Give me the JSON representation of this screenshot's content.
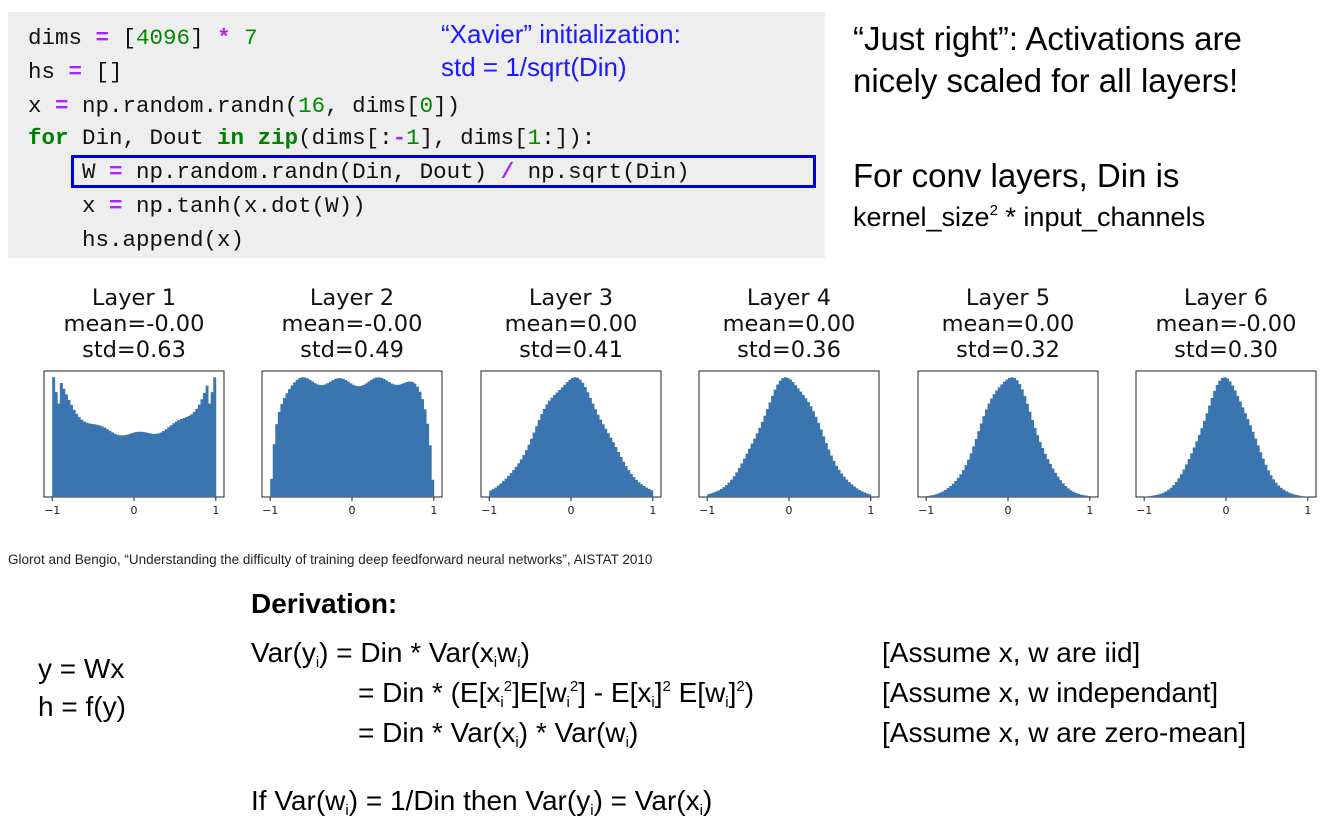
{
  "code": {
    "line1": {
      "a": "dims ",
      "op": "=",
      "b": " [",
      "n1": "4096",
      "c": "] ",
      "op2": "*",
      "d": " ",
      "n2": "7"
    },
    "line2": {
      "a": "hs ",
      "op": "=",
      "b": " []"
    },
    "line3": {
      "a": "x ",
      "op": "=",
      "b": " np.random.randn(",
      "n1": "16",
      "c": ", dims[",
      "n2": "0",
      "d": "])"
    },
    "line4": {
      "kw": "for",
      "a": " Din, Dout ",
      "kw2": "in",
      "b": " ",
      "kw3": "zip",
      "c": "(dims[:",
      "op": "-",
      "n1": "1",
      "d": "], dims[",
      "n2": "1",
      "e": ":]):"
    },
    "line5": {
      "a": "    W ",
      "op": "=",
      "b": " np.random.randn(Din, Dout) ",
      "op2": "/",
      "c": " np.sqrt(Din)"
    },
    "line6": {
      "a": "    x ",
      "op": "=",
      "b": " np.tanh(x.dot(W))"
    },
    "line7": {
      "a": "    hs.append(x)"
    }
  },
  "xavier_note": {
    "line1": "“Xavier” initialization:",
    "line2": "std = 1/sqrt(Din)"
  },
  "side_note": {
    "line1": "“Just right”: Activations are",
    "line2": "nicely scaled for all layers!",
    "line3": "For conv layers, Din is",
    "line4a": "kernel_size",
    "line4sup": "2",
    "line4b": " * input_channels"
  },
  "citation": "Glorot and Bengio, “Understanding the difficulty of training deep feedforward neural networks”, AISTAT 2010",
  "equations_left": {
    "line1": "y = Wx",
    "line2": "h = f(y)"
  },
  "derivation": {
    "title": "Derivation:",
    "r1": {
      "a": "Var(y",
      "s1": "i",
      "b": ") = Din * Var(x",
      "s2": "i",
      "c": "w",
      "s3": "i",
      "d": ")"
    },
    "r2": {
      "a": "= Din * (E[x",
      "s1": "i",
      "p1": "2",
      "b": "]E[w",
      "s2": "i",
      "p2": "2",
      "c": "] - E[x",
      "s3": "i",
      "d": "]",
      "p3": "2",
      "e": " E[w",
      "s4": "i",
      "f": "]",
      "p4": "2",
      "g": ")"
    },
    "r3": {
      "a": "= Din * Var(x",
      "s1": "i",
      "b": ") * Var(w",
      "s2": "i",
      "c": ")"
    },
    "n1": "[Assume x, w are iid]",
    "n2": "[Assume x, w independant]",
    "n3": "[Assume x, w are zero-mean]",
    "final": {
      "a": "If Var(w",
      "s1": "i",
      "b": ") = 1/Din then Var(y",
      "s2": "i",
      "c": ") = Var(x",
      "s3": "i",
      "d": ")"
    }
  },
  "chart_data": [
    {
      "type": "bar",
      "title": "Layer 1",
      "mean": "mean=-0.00",
      "std": "std=0.63",
      "std_value": 0.63,
      "shape": "u",
      "xlim": [
        -1.1,
        1.1
      ],
      "xticks": [
        "−1",
        "0",
        "1"
      ]
    },
    {
      "type": "bar",
      "title": "Layer 2",
      "mean": "mean=-0.00",
      "std": "std=0.49",
      "std_value": 0.49,
      "shape": "plateau",
      "xlim": [
        -1.1,
        1.1
      ],
      "xticks": [
        "−1",
        "0",
        "1"
      ]
    },
    {
      "type": "bar",
      "title": "Layer 3",
      "mean": "mean=0.00",
      "std": "std=0.41",
      "std_value": 0.41,
      "shape": "bell",
      "xlim": [
        -1.1,
        1.1
      ],
      "xticks": [
        "−1",
        "0",
        "1"
      ]
    },
    {
      "type": "bar",
      "title": "Layer 4",
      "mean": "mean=0.00",
      "std": "std=0.36",
      "std_value": 0.36,
      "shape": "bell",
      "xlim": [
        -1.1,
        1.1
      ],
      "xticks": [
        "−1",
        "0",
        "1"
      ]
    },
    {
      "type": "bar",
      "title": "Layer 5",
      "mean": "mean=0.00",
      "std": "std=0.32",
      "std_value": 0.32,
      "shape": "bell",
      "xlim": [
        -1.1,
        1.1
      ],
      "xticks": [
        "−1",
        "0",
        "1"
      ]
    },
    {
      "type": "bar",
      "title": "Layer 6",
      "mean": "mean=-0.00",
      "std": "std=0.30",
      "std_value": 0.3,
      "shape": "bell",
      "xlim": [
        -1.1,
        1.1
      ],
      "xticks": [
        "−1",
        "0",
        "1"
      ]
    }
  ],
  "colors": {
    "bar": "#3a75b0",
    "code_bg": "#eeeeee",
    "highlight": "#0000dd",
    "note": "#1a1aff"
  }
}
